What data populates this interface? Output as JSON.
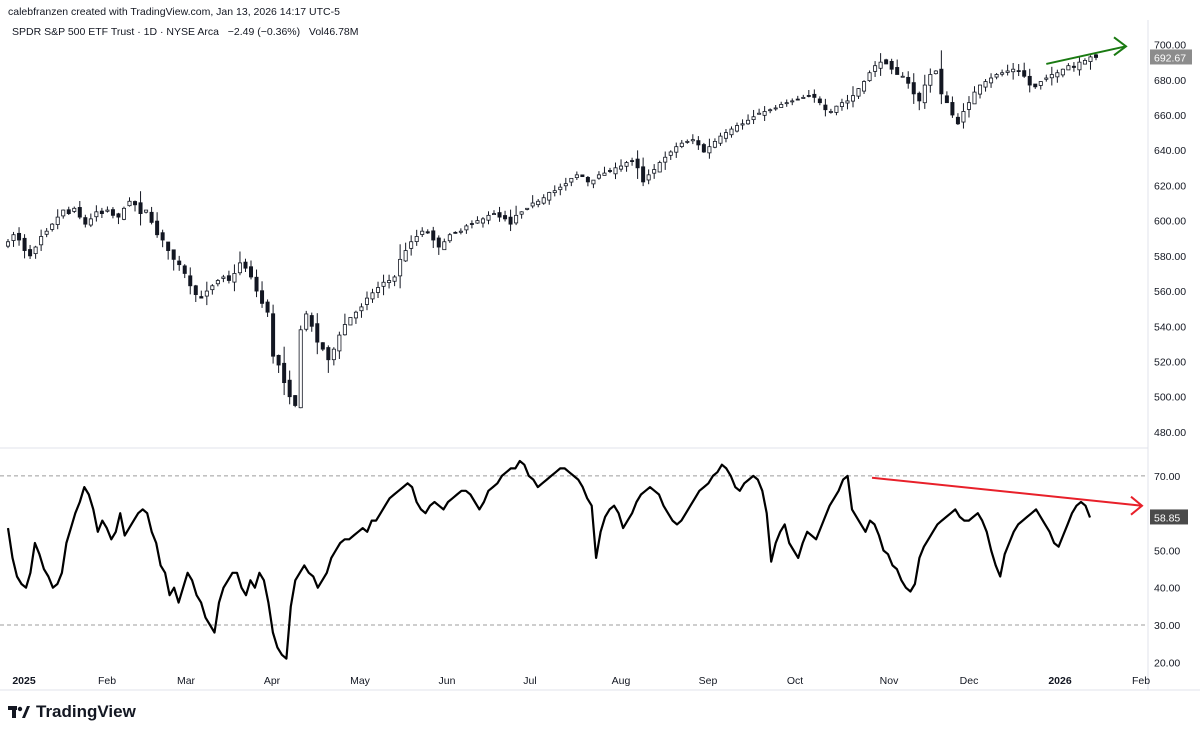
{
  "header": {
    "credit": "calebfranzen created with TradingView.com, Jan 13, 2026 14:17 UTC-5",
    "symbol": "SPDR S&P 500 ETF Trust · 1D · NYSE Arca",
    "change": "−2.49 (−0.36%)",
    "volume": "Vol46.78M"
  },
  "brand": {
    "name": "TradingView",
    "icon": "tradingview-logo-icon"
  },
  "colors": {
    "candle": "#131722",
    "rsi_line": "#000000",
    "price_trendline": "#1a7a12",
    "rsi_trendline": "#e8202a",
    "last_price_badge": "#8c8c8c",
    "last_rsi_badge": "#4a4a4a"
  },
  "chart_data": [
    {
      "type": "candlestick",
      "series": [
        {
          "name": "SPDR S&P 500 ETF Trust"
        }
      ],
      "y_ticks": [
        "700.00",
        "680.00",
        "660.00",
        "640.00",
        "620.00",
        "600.00",
        "580.00",
        "560.00",
        "540.00",
        "520.00",
        "500.00",
        "480.00"
      ],
      "ylim": [
        472,
        706
      ],
      "last_price_label": "692.67",
      "close_series": [
        588,
        592,
        589,
        583,
        580,
        585,
        591,
        594,
        598,
        602,
        606,
        604,
        607,
        602,
        598,
        601,
        605,
        604,
        606,
        603,
        602,
        607,
        611,
        609,
        604,
        606,
        599,
        592,
        589,
        583,
        578,
        575,
        570,
        563,
        558,
        556,
        560,
        563,
        566,
        568,
        566,
        570,
        576,
        573,
        568,
        560,
        553,
        548,
        523,
        518,
        508,
        500,
        495,
        538,
        547,
        540,
        531,
        527,
        521,
        527,
        535,
        541,
        545,
        548,
        551,
        556,
        559,
        562,
        565,
        566,
        568,
        578,
        583,
        588,
        591,
        594,
        593,
        589,
        585,
        588,
        592,
        593,
        594,
        597,
        598,
        600,
        601,
        603,
        604,
        602,
        601,
        598,
        603,
        605,
        607,
        610,
        611,
        613,
        616,
        617,
        619,
        621,
        624,
        626,
        625,
        622,
        623,
        626,
        627,
        628,
        630,
        631,
        633,
        634,
        630,
        622,
        626,
        629,
        633,
        636,
        639,
        642,
        644,
        645,
        646,
        643,
        639,
        642,
        645,
        648,
        650,
        652,
        654,
        655,
        657,
        659,
        661,
        662,
        663,
        664,
        666,
        667,
        668,
        669,
        670,
        671,
        670,
        667,
        663,
        662,
        665,
        667,
        668,
        671,
        675,
        679,
        684,
        688,
        690,
        689,
        686,
        683,
        682,
        678,
        672,
        668,
        677,
        683,
        685,
        672,
        667,
        660,
        655,
        662,
        667,
        673,
        677,
        679,
        681,
        683,
        684,
        685,
        686,
        685,
        682,
        677,
        676,
        679,
        681,
        683,
        684,
        686,
        688,
        687,
        690,
        691,
        693,
        692.67
      ],
      "price_trendline": {
        "from_price": 689,
        "to_price": 699,
        "arrow": true
      }
    },
    {
      "type": "line",
      "series": [
        {
          "name": ""
        }
      ],
      "y_ticks": [
        "70.00",
        "60.00",
        "50.00",
        "40.00",
        "30.00",
        "20.00"
      ],
      "ylim": [
        17.4,
        75.6
      ],
      "overbought": 70,
      "oversold": 30,
      "last_value_label": "58.85",
      "values": [
        56,
        48,
        43,
        41,
        40,
        44,
        52,
        49,
        45,
        43,
        40,
        41,
        44,
        52,
        56,
        60,
        63,
        67,
        65,
        61,
        55,
        58,
        56,
        53,
        55,
        60,
        54,
        56,
        58,
        60,
        61,
        60,
        55,
        52,
        46,
        44,
        38,
        40,
        36,
        40,
        44,
        42,
        38,
        36,
        32,
        30,
        28,
        36,
        40,
        42,
        44,
        44,
        40,
        38,
        42,
        40,
        44,
        42,
        36,
        28,
        24,
        22,
        21,
        35,
        42,
        44,
        46,
        44,
        43,
        40,
        42,
        44,
        48,
        50,
        52,
        53,
        53,
        54,
        55,
        56,
        55,
        58,
        58,
        60,
        62,
        64,
        65,
        66,
        67,
        68,
        67,
        63,
        61,
        60,
        62,
        63,
        62,
        61,
        63,
        64,
        65,
        66,
        66,
        65,
        63,
        61,
        63,
        66,
        67,
        68,
        70,
        71,
        72,
        72,
        74,
        73,
        70,
        69,
        67,
        68,
        69,
        70,
        71,
        72,
        72,
        71,
        70,
        69,
        67,
        64,
        62,
        48,
        55,
        59,
        61,
        62,
        60,
        56,
        58,
        60,
        63,
        65,
        66,
        67,
        66,
        65,
        62,
        60,
        58,
        57,
        58,
        60,
        62,
        64,
        66,
        67,
        68,
        70,
        71,
        73,
        72,
        70,
        67,
        66,
        68,
        69,
        70,
        69,
        66,
        60,
        47,
        52,
        55,
        57,
        52,
        50,
        48,
        52,
        55,
        54,
        53,
        56,
        59,
        62,
        64,
        66,
        69,
        70,
        61,
        59,
        57,
        55,
        58,
        57,
        54,
        50,
        49,
        46,
        45,
        42,
        40,
        39,
        41,
        48,
        51,
        53,
        55,
        57,
        58,
        59,
        60,
        61,
        59,
        58,
        58,
        59,
        60,
        58,
        55,
        50,
        46,
        43,
        49,
        52,
        55,
        57,
        58,
        59,
        60,
        61,
        59,
        57,
        55,
        52,
        51,
        54,
        57,
        60,
        62,
        63,
        62,
        58.85
      ],
      "rsi_trendline": {
        "from_value": 69.5,
        "to_value": 62,
        "arrow": true
      }
    }
  ],
  "x_axis": {
    "labels": [
      "2025",
      "Feb",
      "Mar",
      "Apr",
      "May",
      "Jun",
      "Jul",
      "Aug",
      "Sep",
      "Oct",
      "Nov",
      "Dec",
      "2026",
      "Feb"
    ],
    "bold": [
      "2025",
      "2026"
    ]
  }
}
